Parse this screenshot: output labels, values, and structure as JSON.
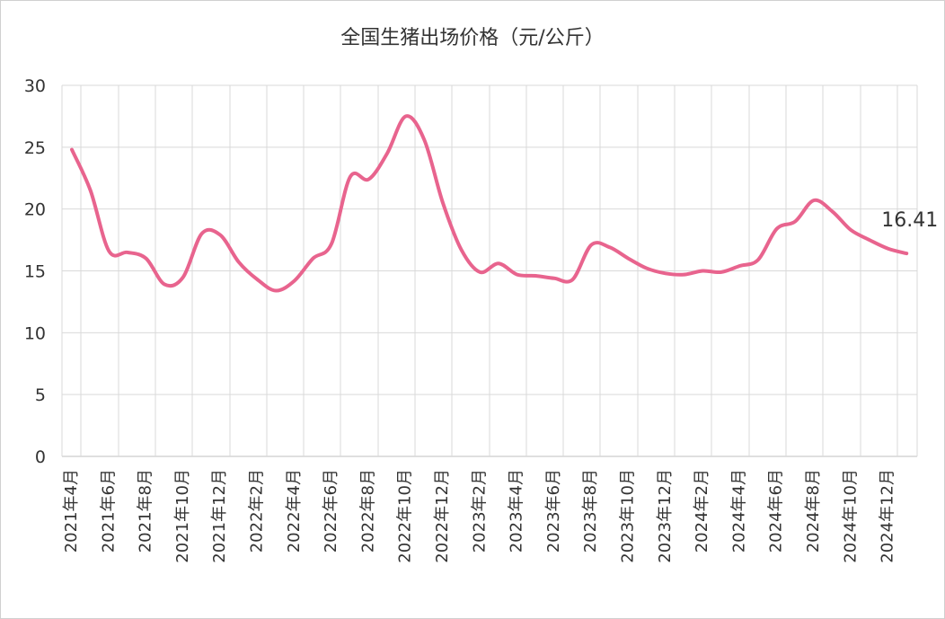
{
  "chart_data": {
    "type": "line",
    "title": "全国生猪出场价格（元/公斤）",
    "xlabel": "",
    "ylabel": "",
    "ylim": [
      0,
      30
    ],
    "yticks": [
      0,
      5,
      10,
      15,
      20,
      25,
      30
    ],
    "grid": true,
    "legend": "none",
    "line_color": "#e8648e",
    "x_tick_labels": [
      "2021年4月",
      "2021年6月",
      "2021年8月",
      "2021年10月",
      "2021年12月",
      "2022年2月",
      "2022年4月",
      "2022年6月",
      "2022年8月",
      "2022年10月",
      "2022年12月",
      "2023年2月",
      "2023年4月",
      "2023年6月",
      "2023年8月",
      "2023年10月",
      "2023年12月",
      "2024年2月",
      "2024年4月",
      "2024年6月",
      "2024年8月",
      "2024年10月",
      "2024年12月"
    ],
    "x": [
      "2021年4月",
      "2021年5月",
      "2021年6月",
      "2021年7月",
      "2021年8月",
      "2021年9月",
      "2021年10月",
      "2021年11月",
      "2021年12月",
      "2022年1月",
      "2022年2月",
      "2022年3月",
      "2022年4月",
      "2022年5月",
      "2022年6月",
      "2022年7月",
      "2022年8月",
      "2022年9月",
      "2022年10月",
      "2022年11月",
      "2022年12月",
      "2023年1月",
      "2023年2月",
      "2023年3月",
      "2023年4月",
      "2023年5月",
      "2023年6月",
      "2023年7月",
      "2023年8月",
      "2023年9月",
      "2023年10月",
      "2023年11月",
      "2023年12月",
      "2024年1月",
      "2024年2月",
      "2024年3月",
      "2024年4月",
      "2024年5月",
      "2024年6月",
      "2024年7月",
      "2024年8月",
      "2024年9月",
      "2024年10月",
      "2024年11月",
      "2024年12月",
      "2025年1月"
    ],
    "values": [
      24.8,
      21.5,
      16.6,
      16.5,
      16.0,
      13.9,
      14.5,
      18.0,
      17.9,
      15.7,
      14.3,
      13.4,
      14.2,
      16.0,
      17.2,
      22.6,
      22.4,
      24.5,
      27.5,
      25.6,
      20.5,
      16.7,
      14.9,
      15.6,
      14.7,
      14.6,
      14.4,
      14.3,
      17.1,
      16.9,
      16.0,
      15.2,
      14.8,
      14.7,
      15.0,
      14.9,
      15.4,
      15.9,
      18.4,
      19.0,
      20.7,
      19.8,
      18.3,
      17.5,
      16.8,
      16.41
    ],
    "annotations": [
      {
        "x": "2025年1月",
        "text": "16.41"
      }
    ]
  }
}
